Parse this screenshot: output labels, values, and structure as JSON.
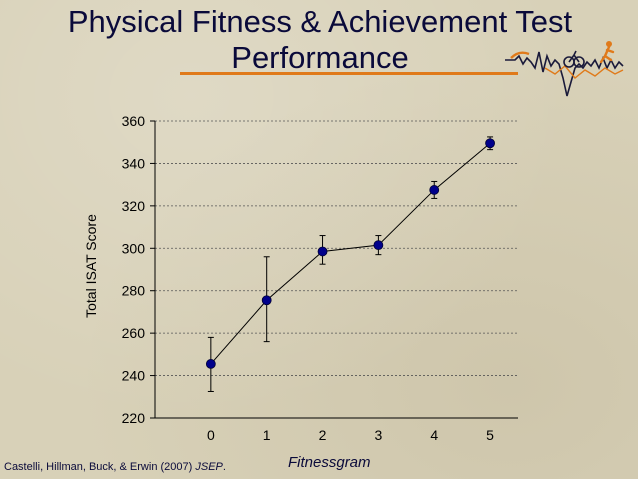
{
  "slide": {
    "title_line1": "Physical Fitness & Achievement Test",
    "title_line2": "Performance",
    "credit_text": "Castelli, Hillman, Buck, & Erwin (2007)",
    "credit_journal": "JSEP",
    "credit_end": ".",
    "accent_color": "#e07a1a",
    "title_color": "#0a0a3a",
    "decoration": "fitness-figures-icon"
  },
  "chart_data": {
    "type": "scatter",
    "title": "",
    "xlabel": "Fitnessgram",
    "ylabel": "Total ISAT Score",
    "x": [
      0,
      1,
      2,
      3,
      4,
      5
    ],
    "x_ticks": [
      "0",
      "1",
      "2",
      "3",
      "4",
      "5"
    ],
    "xlim": [
      -1,
      5.5
    ],
    "ylim": [
      220,
      360
    ],
    "y_ticks": [
      "220",
      "240",
      "260",
      "280",
      "300",
      "320",
      "340",
      "360"
    ],
    "series": [
      {
        "values": [
          245.5,
          275.5,
          298.5,
          301.5,
          327.5,
          349.5
        ],
        "err_low": [
          232.5,
          256,
          292.5,
          297,
          323.5,
          346.5
        ],
        "err_high": [
          258,
          296,
          306,
          306,
          331.5,
          352.5
        ],
        "color": "#00008b"
      }
    ],
    "grid": true,
    "connect_points": true
  }
}
